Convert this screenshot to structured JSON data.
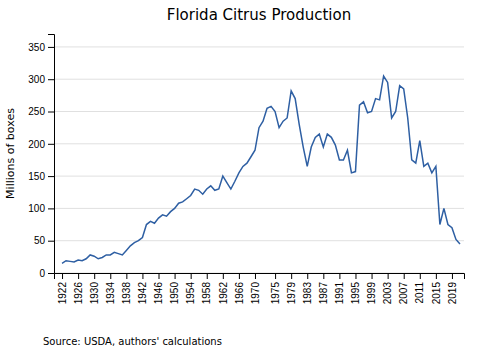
{
  "chart_data": {
    "type": "line",
    "title": "Florida Citrus Production",
    "y_label": "Millions of boxes",
    "annotations": [
      "Source: USDA, authors' calculations"
    ],
    "color": "#2E5FA3",
    "grid": true,
    "xlim": [
      1920,
      2022
    ],
    "xticks": [
      1922,
      1926,
      1930,
      1934,
      1938,
      1942,
      1946,
      1950,
      1954,
      1958,
      1962,
      1966,
      1970,
      1975,
      1979,
      1983,
      1987,
      1991,
      1995,
      1999,
      2003,
      2007,
      2011,
      2015,
      2019
    ],
    "ylim": [
      0,
      370
    ],
    "yticks": [
      0,
      50,
      100,
      150,
      200,
      250,
      300,
      350
    ],
    "x": [
      1922,
      1923,
      1924,
      1925,
      1926,
      1927,
      1928,
      1929,
      1930,
      1931,
      1932,
      1933,
      1934,
      1935,
      1936,
      1937,
      1938,
      1939,
      1940,
      1941,
      1942,
      1943,
      1944,
      1945,
      1946,
      1947,
      1948,
      1949,
      1950,
      1951,
      1952,
      1953,
      1954,
      1955,
      1956,
      1957,
      1958,
      1959,
      1960,
      1961,
      1962,
      1963,
      1964,
      1965,
      1966,
      1967,
      1968,
      1969,
      1970,
      1971,
      1972,
      1973,
      1974,
      1975,
      1976,
      1977,
      1978,
      1979,
      1980,
      1981,
      1982,
      1983,
      1984,
      1985,
      1986,
      1987,
      1988,
      1989,
      1990,
      1991,
      1992,
      1993,
      1994,
      1995,
      1996,
      1997,
      1998,
      1999,
      2000,
      2001,
      2002,
      2003,
      2004,
      2005,
      2006,
      2007,
      2008,
      2009,
      2010,
      2011,
      2012,
      2013,
      2014,
      2015,
      2016,
      2017,
      2018,
      2019,
      2020,
      2021
    ],
    "values": [
      15,
      19,
      18,
      17,
      20,
      19,
      22,
      28,
      26,
      22,
      24,
      28,
      28,
      32,
      30,
      28,
      35,
      42,
      47,
      50,
      55,
      75,
      80,
      77,
      85,
      90,
      88,
      95,
      100,
      108,
      110,
      115,
      120,
      130,
      128,
      122,
      130,
      135,
      128,
      130,
      150,
      140,
      130,
      142,
      155,
      165,
      170,
      180,
      190,
      225,
      235,
      255,
      258,
      250,
      225,
      235,
      240,
      282,
      270,
      230,
      195,
      165,
      195,
      210,
      215,
      195,
      215,
      210,
      198,
      175,
      175,
      190,
      155,
      157,
      260,
      265,
      248,
      250,
      270,
      268,
      305,
      295,
      240,
      250,
      290,
      285,
      240,
      175,
      170,
      205,
      165,
      170,
      155,
      165,
      75,
      100,
      75,
      70,
      52,
      45
    ]
  }
}
